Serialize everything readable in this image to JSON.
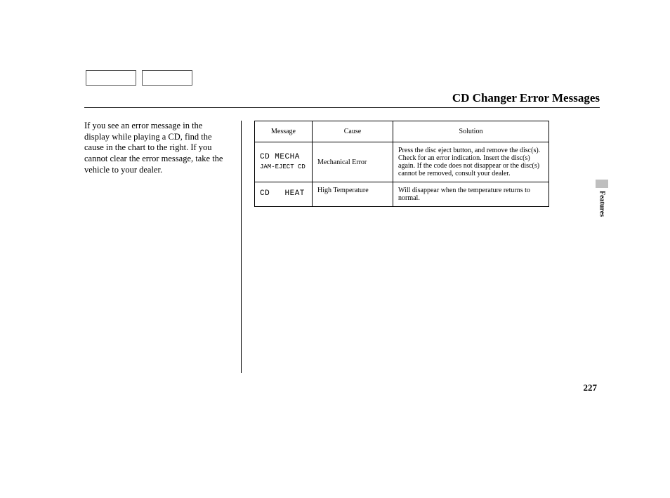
{
  "title": "CD Changer Error Messages",
  "intro": "If you see an error message in the display while playing a CD, find the cause in the chart to the right. If you cannot clear the error message, take the vehicle to your dealer.",
  "section_label": "Features",
  "page_number": "227",
  "table": {
    "headers": {
      "message": "Message",
      "cause": "Cause",
      "solution": "Solution"
    },
    "rows": [
      {
        "msg_line1": "CD MECHA",
        "msg_line2": "JAM-EJECT CD",
        "cause": "Mechanical Error",
        "solution": "Press the disc eject button, and remove the disc(s). Check for an error indication. Insert the disc(s) again. If the code does not disappear or the disc(s) cannot be removed, consult your dealer."
      },
      {
        "msg_line1": "CD   HEAT",
        "msg_line2": "",
        "cause": "High Temperature",
        "solution": "Will disappear when the temperature returns to normal."
      }
    ]
  },
  "style": {
    "page_bg": "#ffffff",
    "text_color": "#000000",
    "border_color": "#000000",
    "tab_color": "#bfbfbf",
    "title_fontsize": 17,
    "body_fontsize": 12.5,
    "table_fontsize": 10,
    "lcd_fontsize": 11
  }
}
